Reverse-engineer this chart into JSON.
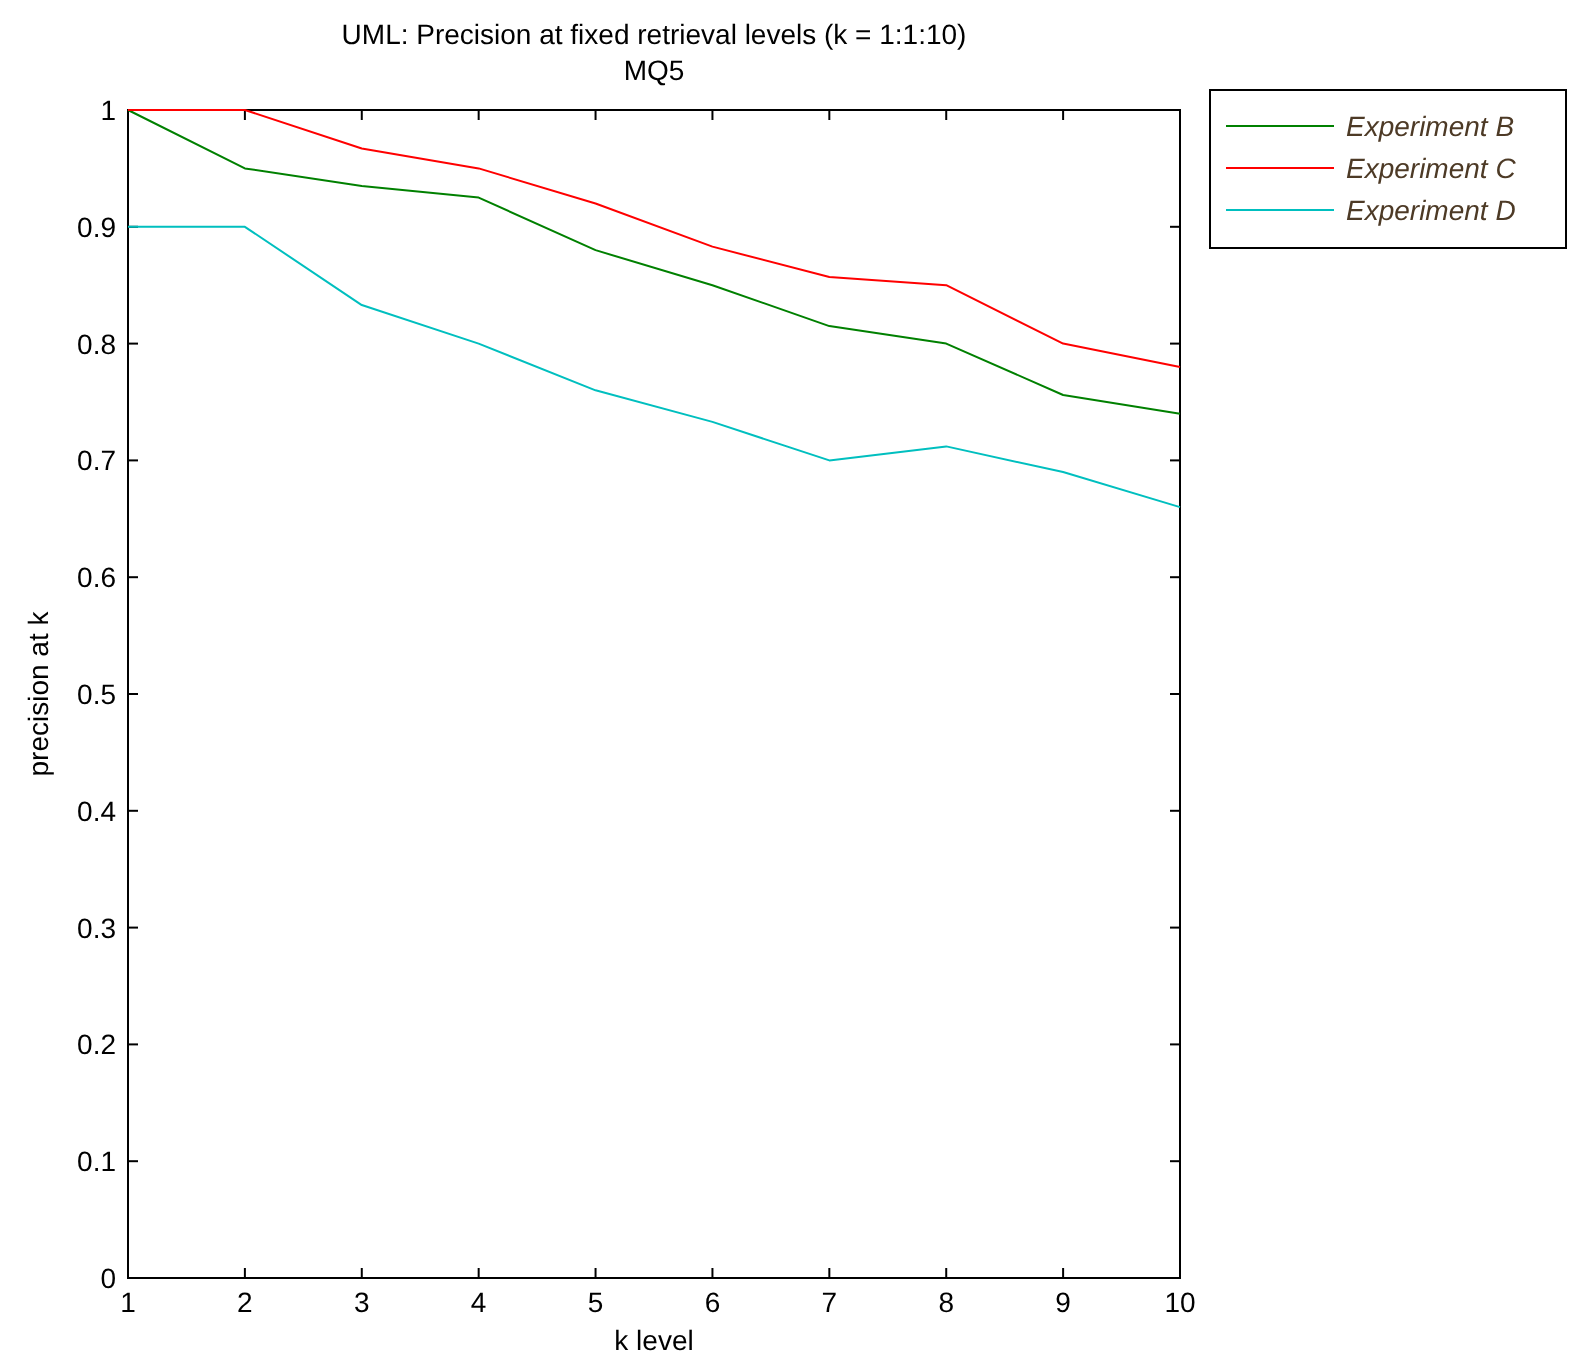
{
  "chart_data": {
    "type": "line",
    "title": "UML: Precision at fixed retrieval levels (k = 1:1:10)",
    "subtitle": "MQ5",
    "xlabel": "k level",
    "ylabel": "precision at k",
    "x": [
      1,
      2,
      3,
      4,
      5,
      6,
      7,
      8,
      9,
      10
    ],
    "series": [
      {
        "name": "Experiment B",
        "color": "#008000",
        "values": [
          1,
          0.95,
          0.935,
          0.925,
          0.88,
          0.85,
          0.815,
          0.8,
          0.756,
          0.74
        ]
      },
      {
        "name": "Experiment C",
        "color": "#ff0000",
        "values": [
          1,
          1,
          0.967,
          0.95,
          0.92,
          0.883,
          0.857,
          0.85,
          0.8,
          0.78
        ]
      },
      {
        "name": "Experiment D",
        "color": "#00bfbf",
        "values": [
          0.9,
          0.9,
          0.833,
          0.8,
          0.76,
          0.733,
          0.7,
          0.712,
          0.69,
          0.66
        ]
      }
    ],
    "xlim": [
      1,
      10
    ],
    "ylim": [
      0,
      1
    ],
    "xticks": [
      1,
      2,
      3,
      4,
      5,
      6,
      7,
      8,
      9,
      10
    ],
    "yticks": [
      0,
      0.1,
      0.2,
      0.3,
      0.4,
      0.5,
      0.6,
      0.7,
      0.8,
      0.9,
      1
    ],
    "grid": false,
    "legend": "top right",
    "marker": "none",
    "line_style": "solid"
  }
}
